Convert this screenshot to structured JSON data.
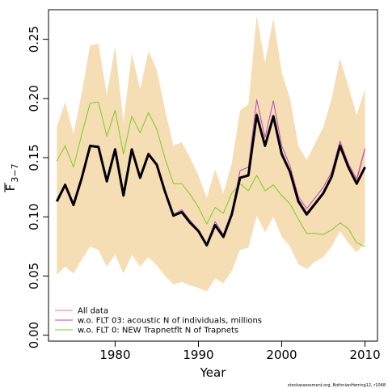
{
  "chart_data": {
    "type": "line",
    "xlabel": "Year",
    "ylabel_main": "F",
    "ylabel_sub": "3−7",
    "xlim": [
      1972,
      2011.5
    ],
    "ylim": [
      -0.005,
      0.275
    ],
    "x_ticks": [
      1980,
      1990,
      2000,
      2010
    ],
    "y_ticks": [
      0.0,
      0.05,
      0.1,
      0.15,
      0.2,
      0.25
    ],
    "y_tick_labels": [
      "0.00",
      "0.05",
      "0.10",
      "0.15",
      "0.20",
      "0.25"
    ],
    "grid": false,
    "legend_position": "bottom-left",
    "footnote": "stockassessment.org, BothnianHerring12, r1048",
    "x": [
      1973,
      1974,
      1975,
      1976,
      1977,
      1978,
      1979,
      1980,
      1981,
      1982,
      1983,
      1984,
      1985,
      1986,
      1987,
      1988,
      1989,
      1990,
      1991,
      1992,
      1993,
      1994,
      1995,
      1996,
      1997,
      1998,
      1999,
      2000,
      2001,
      2002,
      2003,
      2004,
      2005,
      2006,
      2007,
      2008,
      2009,
      2010
    ],
    "band": {
      "color": "#f5deb3",
      "upper": [
        0.176,
        0.197,
        0.17,
        0.205,
        0.245,
        0.246,
        0.203,
        0.244,
        0.18,
        0.238,
        0.208,
        0.24,
        0.224,
        0.19,
        0.16,
        0.163,
        0.15,
        0.135,
        0.116,
        0.14,
        0.12,
        0.145,
        0.19,
        0.195,
        0.27,
        0.23,
        0.268,
        0.222,
        0.2,
        0.16,
        0.148,
        0.162,
        0.176,
        0.2,
        0.234,
        0.21,
        0.186,
        0.208
      ],
      "lower": [
        0.051,
        0.058,
        0.052,
        0.064,
        0.075,
        0.072,
        0.058,
        0.068,
        0.052,
        0.068,
        0.058,
        0.066,
        0.059,
        0.05,
        0.043,
        0.045,
        0.042,
        0.04,
        0.037,
        0.048,
        0.044,
        0.054,
        0.072,
        0.074,
        0.101,
        0.087,
        0.1,
        0.083,
        0.075,
        0.06,
        0.056,
        0.062,
        0.066,
        0.075,
        0.088,
        0.078,
        0.07,
        0.078
      ]
    },
    "series": [
      {
        "name": "All data",
        "color": "#e8797c",
        "width": 1,
        "values": [
          0.113,
          0.127,
          0.11,
          0.133,
          0.16,
          0.159,
          0.13,
          0.157,
          0.118,
          0.157,
          0.133,
          0.153,
          0.144,
          0.121,
          0.101,
          0.104,
          0.095,
          0.088,
          0.076,
          0.093,
          0.083,
          0.102,
          0.133,
          0.136,
          0.188,
          0.162,
          0.186,
          0.155,
          0.139,
          0.115,
          0.104,
          0.112,
          0.121,
          0.134,
          0.162,
          0.143,
          0.13,
          0.157
        ]
      },
      {
        "name": "w.o. FLT 03:   acoustic   N of individuals, millions",
        "color": "#b946c4",
        "width": 1,
        "values": [
          0.113,
          0.128,
          0.11,
          0.133,
          0.16,
          0.16,
          0.131,
          0.158,
          0.118,
          0.158,
          0.134,
          0.154,
          0.145,
          0.122,
          0.102,
          0.106,
          0.097,
          0.089,
          0.077,
          0.096,
          0.085,
          0.104,
          0.139,
          0.142,
          0.199,
          0.167,
          0.198,
          0.16,
          0.143,
          0.117,
          0.107,
          0.116,
          0.125,
          0.138,
          0.164,
          0.145,
          0.132,
          0.158
        ]
      },
      {
        "name": "w.o. FLT 0: NEW Trapnetflt    N of Trapnets",
        "color": "#7ccd1f",
        "width": 1,
        "values": [
          0.147,
          0.16,
          0.142,
          0.17,
          0.196,
          0.197,
          0.168,
          0.19,
          0.153,
          0.185,
          0.171,
          0.188,
          0.174,
          0.149,
          0.128,
          0.128,
          0.119,
          0.108,
          0.094,
          0.108,
          0.103,
          0.12,
          0.128,
          0.122,
          0.135,
          0.122,
          0.127,
          0.118,
          0.111,
          0.098,
          0.086,
          0.086,
          0.085,
          0.089,
          0.095,
          0.09,
          0.078,
          0.075
        ]
      },
      {
        "name": "",
        "color": "#000000",
        "width": 3,
        "values": [
          0.113,
          0.127,
          0.11,
          0.133,
          0.16,
          0.159,
          0.13,
          0.157,
          0.118,
          0.157,
          0.133,
          0.153,
          0.144,
          0.121,
          0.101,
          0.104,
          0.095,
          0.088,
          0.076,
          0.093,
          0.083,
          0.102,
          0.133,
          0.135,
          0.186,
          0.16,
          0.185,
          0.153,
          0.138,
          0.113,
          0.102,
          0.111,
          0.12,
          0.134,
          0.16,
          0.142,
          0.128,
          0.142
        ]
      }
    ]
  }
}
